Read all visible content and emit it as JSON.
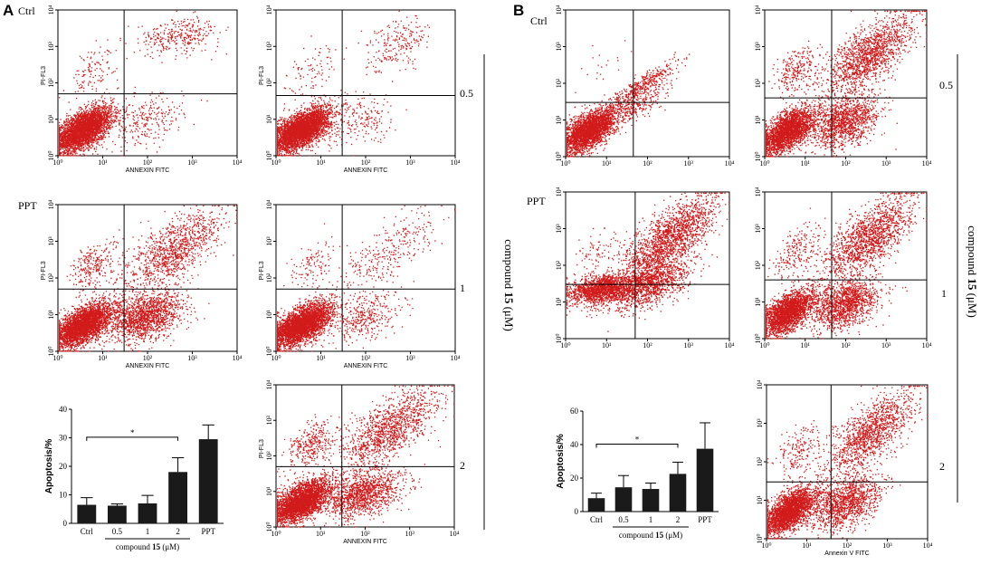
{
  "figure": {
    "panel_labels": [
      "A",
      "B"
    ],
    "row_labels": {
      "A_ctrl": "Ctrl",
      "A_ppt": "PPT",
      "B_ctrl": "Ctrl",
      "B_ppt": "PPT"
    },
    "conc_labels": {
      "A_top": "0.5",
      "A_mid": "1",
      "A_bot": "2",
      "B_top": "0.5",
      "B_mid": "1",
      "B_bot": "2"
    },
    "side_label_prefix": "compound ",
    "side_label_bold": "15",
    "side_label_unit": " (μM)",
    "asterisk": "*",
    "marker_color": "#d11a1a",
    "bar_color": "#1a1a1a"
  },
  "chart_data": [
    {
      "type": "scatter",
      "panel": "A",
      "name": "A-Ctrl",
      "xlabel": "ANNEXIN FITC",
      "ylabel": "PI-FL3",
      "xlim": [
        1,
        10000
      ],
      "ylim": [
        1,
        10000
      ],
      "x_ticks": [
        "10⁰",
        "10¹",
        "10²",
        "10³",
        "10⁴"
      ],
      "y_ticks": [
        "10⁰",
        "10¹",
        "10²",
        "10³",
        "10⁴"
      ],
      "gate": [
        30,
        50
      ],
      "populations": {
        "live": 3800,
        "early": 260,
        "late": 320,
        "necro": 120
      }
    },
    {
      "type": "scatter",
      "panel": "A",
      "name": "A-0.5",
      "xlabel": "ANNEXIN FITC",
      "ylabel": "PI-FL3",
      "xlim": [
        1,
        10000
      ],
      "ylim": [
        1,
        10000
      ],
      "x_ticks": [
        "10⁰",
        "10¹",
        "10²",
        "10³",
        "10⁴"
      ],
      "y_ticks": [
        "10⁰",
        "10¹",
        "10²",
        "10³",
        "10⁴"
      ],
      "gate": [
        30,
        45
      ],
      "populations": {
        "live": 3800,
        "early": 200,
        "late": 220,
        "necro": 90
      }
    },
    {
      "type": "scatter",
      "panel": "A",
      "name": "A-PPT",
      "xlabel": "ANNEXIN FITC",
      "ylabel": "PI-FL3",
      "xlim": [
        1,
        10000
      ],
      "ylim": [
        1,
        10000
      ],
      "x_ticks": [
        "10⁰",
        "10¹",
        "10²",
        "10³",
        "10⁴"
      ],
      "y_ticks": [
        "10⁰",
        "10¹",
        "10²",
        "10³",
        "10⁴"
      ],
      "gate": [
        30,
        50
      ],
      "populations": {
        "live": 3400,
        "early": 1500,
        "late": 1100,
        "necro": 260
      }
    },
    {
      "type": "scatter",
      "panel": "A",
      "name": "A-1",
      "xlabel": "ANNEXIN FITC",
      "ylabel": "PI-FL3",
      "xlim": [
        1,
        10000
      ],
      "ylim": [
        1,
        10000
      ],
      "x_ticks": [
        "10⁰",
        "10¹",
        "10²",
        "10³",
        "10⁴"
      ],
      "y_ticks": [
        "10⁰",
        "10¹",
        "10²",
        "10³",
        "10⁴"
      ],
      "gate": [
        30,
        50
      ],
      "populations": {
        "live": 3600,
        "early": 380,
        "late": 300,
        "necro": 120
      }
    },
    {
      "type": "scatter",
      "panel": "A",
      "name": "A-2",
      "xlabel": "ANNEXIN FITC",
      "ylabel": "PI-FL3",
      "xlim": [
        1,
        10000
      ],
      "ylim": [
        1,
        10000
      ],
      "x_ticks": [
        "10⁰",
        "10¹",
        "10²",
        "10³",
        "10⁴"
      ],
      "y_ticks": [
        "10⁰",
        "10¹",
        "10²",
        "10³",
        "10⁴"
      ],
      "gate": [
        30,
        50
      ],
      "populations": {
        "live": 3300,
        "early": 1300,
        "late": 1200,
        "necro": 320
      }
    },
    {
      "type": "scatter",
      "panel": "B",
      "name": "B-Ctrl",
      "xlabel": "",
      "ylabel": "",
      "xlim": [
        1,
        10000
      ],
      "ylim": [
        1,
        10000
      ],
      "x_ticks": [
        "10⁰",
        "10¹",
        "10²",
        "10³",
        "10⁴"
      ],
      "y_ticks": [
        "10⁰",
        "10¹",
        "10²",
        "10³",
        "10⁴"
      ],
      "gate": [
        45,
        30
      ],
      "populations": {
        "live": 2800,
        "early": 420,
        "late": 360,
        "necro": 20
      }
    },
    {
      "type": "scatter",
      "panel": "B",
      "name": "B-0.5",
      "xlabel": "",
      "ylabel": "",
      "xlim": [
        1,
        10000
      ],
      "ylim": [
        1,
        10000
      ],
      "x_ticks": [
        "10⁰",
        "10¹",
        "10²",
        "10³",
        "10⁴"
      ],
      "y_ticks": [
        "10⁰",
        "10¹",
        "10²",
        "10³",
        "10⁴"
      ],
      "gate": [
        45,
        40
      ],
      "populations": {
        "live": 2600,
        "early": 1300,
        "late": 1500,
        "necro": 250
      }
    },
    {
      "type": "scatter",
      "panel": "B",
      "name": "B-PPT",
      "xlabel": "",
      "ylabel": "",
      "xlim": [
        1,
        10000
      ],
      "ylim": [
        1,
        10000
      ],
      "x_ticks": [
        "10⁰",
        "10¹",
        "10²",
        "10³",
        "10⁴"
      ],
      "y_ticks": [
        "10⁰",
        "10¹",
        "10²",
        "10³",
        "10⁴"
      ],
      "gate": [
        50,
        30
      ],
      "populations": {
        "live": 1600,
        "early": 1400,
        "late": 1700,
        "necro": 80
      }
    },
    {
      "type": "scatter",
      "panel": "B",
      "name": "B-1",
      "xlabel": "",
      "ylabel": "",
      "xlim": [
        1,
        10000
      ],
      "ylim": [
        1,
        10000
      ],
      "x_ticks": [
        "10⁰",
        "10¹",
        "10²",
        "10³",
        "10⁴"
      ],
      "y_ticks": [
        "10⁰",
        "10¹",
        "10²",
        "10³",
        "10⁴"
      ],
      "gate": [
        45,
        40
      ],
      "populations": {
        "live": 2400,
        "early": 1400,
        "late": 1500,
        "necro": 220
      }
    },
    {
      "type": "scatter",
      "panel": "B",
      "name": "B-2",
      "xlabel": "Annexin V FITC",
      "ylabel": "",
      "xlim": [
        1,
        10000
      ],
      "ylim": [
        1,
        10000
      ],
      "x_ticks": [
        "10⁰",
        "10¹",
        "10²",
        "10³",
        "10⁴"
      ],
      "y_ticks": [
        "10⁰",
        "10¹",
        "10²",
        "10³",
        "10⁴"
      ],
      "gate": [
        40,
        30
      ],
      "populations": {
        "live": 2600,
        "early": 1300,
        "late": 1300,
        "necro": 180
      }
    },
    {
      "type": "bar",
      "panel": "A",
      "name": "A-bar",
      "ylabel": "Apoptosis/%",
      "categories": [
        "Ctrl",
        "0.5",
        "1",
        "2",
        "PPT"
      ],
      "values": [
        6.5,
        6.2,
        7.0,
        18.0,
        29.5
      ],
      "errors": [
        2.5,
        0.6,
        2.8,
        5.0,
        5.0
      ],
      "ylim": [
        0,
        40
      ],
      "yticks": [
        0,
        10,
        20,
        30,
        40
      ],
      "xgroup_label_prefix": "compound ",
      "xgroup_label_bold": "15",
      "xgroup_label_unit": " (μM)",
      "significance": {
        "from": 0,
        "to": 3,
        "label": "*"
      }
    },
    {
      "type": "bar",
      "panel": "B",
      "name": "B-bar",
      "ylabel": "Apoptosis/%",
      "categories": [
        "Ctrl",
        "0.5",
        "1",
        "2",
        "PPT"
      ],
      "values": [
        8.0,
        14.5,
        13.5,
        22.5,
        37.5
      ],
      "errors": [
        3.0,
        7.0,
        3.5,
        7.0,
        15.5
      ],
      "ylim": [
        0,
        60
      ],
      "yticks": [
        0,
        20,
        40,
        60
      ],
      "xgroup_label_prefix": "compound ",
      "xgroup_label_bold": "15",
      "xgroup_label_unit": " (μM)",
      "significance": {
        "from": 0,
        "to": 3,
        "label": "*"
      }
    }
  ]
}
